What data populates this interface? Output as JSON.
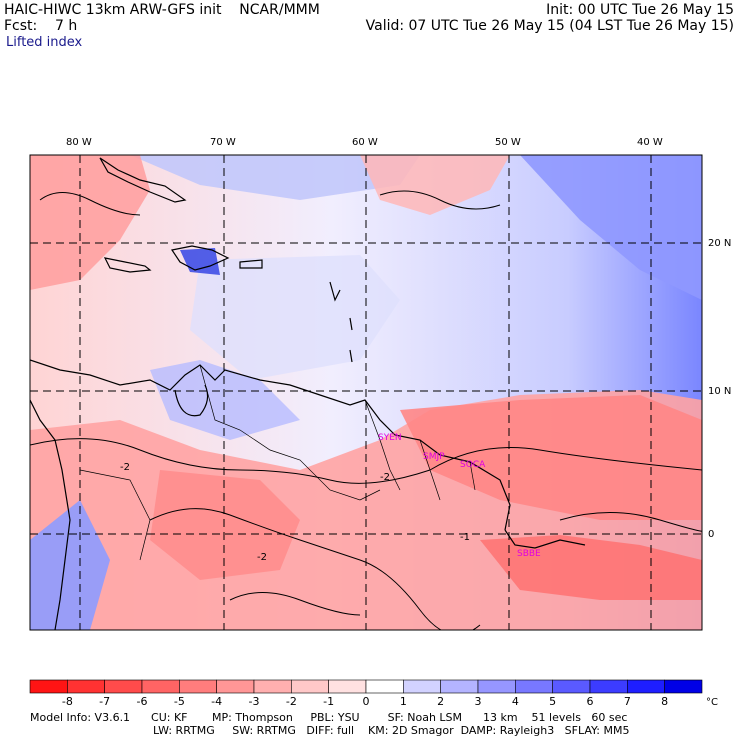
{
  "header": {
    "title": "HAIC-HIWC 13km ARW-GFS init    NCAR/MMM",
    "init": "Init: 00 UTC Tue 26 May 15",
    "fcst": "Fcst:    7 h",
    "valid": "Valid: 07 UTC Tue 26 May 15 (04 LST Tue 26 May 15)",
    "field": "Lifted index"
  },
  "map": {
    "lon_labels": [
      "80 W",
      "70 W",
      "60 W",
      "50 W",
      "40 W"
    ],
    "lat_labels": [
      "20 N",
      "10 N",
      "0"
    ],
    "sites": [
      "SYEN",
      "SMJP",
      "SOCA",
      "SBBE"
    ],
    "contour_labels": [
      "-2",
      "-2",
      "-1",
      "-2"
    ]
  },
  "colorbar": {
    "ticks": [
      "-8",
      "-7",
      "-6",
      "-5",
      "-4",
      "-3",
      "-2",
      "-1",
      "0",
      "1",
      "2",
      "3",
      "4",
      "5",
      "6",
      "7",
      "8"
    ],
    "unit": "°C",
    "colors": [
      "#ff1414",
      "#ff3232",
      "#ff4b4b",
      "#ff6464",
      "#ff7d7d",
      "#ff9696",
      "#ffafaf",
      "#ffc8c8",
      "#ffe1e1",
      "#ffffff",
      "#d2d2ff",
      "#b4b4ff",
      "#9696ff",
      "#7878ff",
      "#5a5aff",
      "#3c3cff",
      "#1e1eff",
      "#0000e6"
    ]
  },
  "footer": {
    "line1": "Model Info: V3.6.1      CU: KF       MP: Thompson     PBL: YSU        SF: Noah LSM      13 km    51 levels   60 sec",
    "line2": "LW: RRTMG     SW: RRTMG   DIFF: full    KM: 2D Smagor  DAMP: Rayleigh3   SFLAY: MM5"
  }
}
